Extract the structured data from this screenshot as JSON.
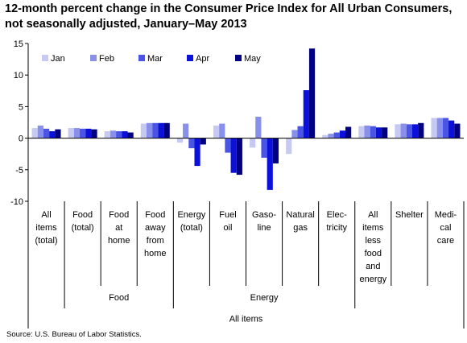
{
  "title": {
    "line1": "12-month percent change in the Consumer Price Index for All Urban Consumers,",
    "line2": "not seasonally adjusted, January–May 2013"
  },
  "source": "Source: U.S. Bureau of Labor Statistics.",
  "chart_data": {
    "type": "bar",
    "title": "12-month percent change in the Consumer Price Index for All Urban Consumers, not seasonally adjusted, January–May 2013",
    "ylim": [
      -10,
      15
    ],
    "yticks": [
      -10,
      -5,
      0,
      5,
      10,
      15
    ],
    "ytick_labels": [
      "-10",
      "-5",
      "0",
      "5",
      "10",
      "15"
    ],
    "grid": false,
    "legend_position": "top-left",
    "categories": [
      [
        "All",
        "items",
        "(total)"
      ],
      [
        "Food",
        "(total)"
      ],
      [
        "Food",
        "at",
        "home"
      ],
      [
        "Food",
        "away",
        "from",
        "home"
      ],
      [
        "Energy",
        "(total)"
      ],
      [
        "Fuel",
        "oil"
      ],
      [
        "Gaso-",
        "line"
      ],
      [
        "Natural",
        "gas"
      ],
      [
        "Elec-",
        "tricity"
      ],
      [
        "All",
        "items",
        "less",
        "food",
        "and",
        "energy"
      ],
      [
        "Shelter"
      ],
      [
        "Medi-",
        "cal",
        "care"
      ]
    ],
    "groups": [
      {
        "label": "Food",
        "start": 1,
        "end": 3
      },
      {
        "label": "Energy",
        "start": 4,
        "end": 8
      },
      {
        "label": "All items",
        "start": 0,
        "end": 11
      }
    ],
    "series": [
      {
        "name": "Jan",
        "color": "#c6c9f2",
        "values": [
          1.6,
          1.6,
          1.1,
          2.3,
          -0.7,
          2.0,
          -1.5,
          -2.5,
          0.5,
          1.9,
          2.2,
          3.2
        ]
      },
      {
        "name": "Feb",
        "color": "#8890ec",
        "values": [
          2.0,
          1.6,
          1.2,
          2.4,
          2.3,
          2.3,
          3.4,
          1.3,
          0.7,
          2.0,
          2.3,
          3.2
        ]
      },
      {
        "name": "Mar",
        "color": "#4a55e6",
        "values": [
          1.5,
          1.5,
          1.1,
          2.4,
          -1.6,
          -2.3,
          -3.1,
          1.9,
          0.9,
          1.9,
          2.2,
          3.2
        ]
      },
      {
        "name": "Apr",
        "color": "#0b11d8",
        "values": [
          1.1,
          1.5,
          1.1,
          2.4,
          -4.4,
          -5.5,
          -8.2,
          7.6,
          1.2,
          1.7,
          2.2,
          2.8
        ]
      },
      {
        "name": "May",
        "color": "#000080",
        "values": [
          1.4,
          1.4,
          0.9,
          2.4,
          -1.0,
          -5.8,
          -4.0,
          14.2,
          1.8,
          1.7,
          2.4,
          2.3
        ]
      }
    ]
  }
}
